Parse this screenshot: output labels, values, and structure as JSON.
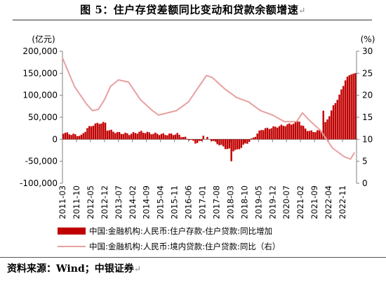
{
  "figure": {
    "title": "图 5：住户存贷差额同比变动和贷款余额增速",
    "source": "资料来源：Wind；中银证券"
  },
  "chart_data": {
    "type": "bar+line",
    "left_axis": {
      "unit": "(亿元)",
      "ylim": [
        -100000,
        200000
      ],
      "ticks": [
        200000,
        150000,
        100000,
        50000,
        0,
        -50000,
        -100000
      ],
      "tick_labels": [
        "200,000",
        "150,000",
        "100,000",
        "50,000",
        "0",
        "-50,000",
        "-100,000"
      ]
    },
    "right_axis": {
      "unit": "(%)",
      "ylim": [
        0,
        30
      ],
      "ticks": [
        30,
        25,
        20,
        15,
        10,
        5,
        0
      ],
      "tick_labels": [
        "30",
        "25",
        "20",
        "15",
        "10",
        "5",
        "0"
      ]
    },
    "x_ticks": [
      "2011-03",
      "2011-10",
      "2012-05",
      "2012-12",
      "2013-07",
      "2014-02",
      "2014-09",
      "2015-04",
      "2015-11",
      "2016-06",
      "2017-01",
      "2017-08",
      "2018-03",
      "2018-10",
      "2019-05",
      "2019-12",
      "2020-07",
      "2021-02",
      "2021-09",
      "2022-04",
      "2022-11"
    ],
    "series": [
      {
        "name": "中国:金融机构:人民币:住户存款-住户贷款:同比增加",
        "kind": "bar",
        "axis": "left",
        "color": "#c00000",
        "start": "2011-03",
        "points": [
          [
            "2011-03",
            15000
          ],
          [
            "2011-09",
            10000
          ],
          [
            "2011-12",
            8000
          ],
          [
            "2012-03",
            25000
          ],
          [
            "2012-06",
            33000
          ],
          [
            "2012-09",
            37000
          ],
          [
            "2012-12",
            37000
          ],
          [
            "2013-01",
            22000
          ],
          [
            "2013-06",
            15000
          ],
          [
            "2013-12",
            12000
          ],
          [
            "2014-06",
            17000
          ],
          [
            "2014-12",
            13000
          ],
          [
            "2015-06",
            11000
          ],
          [
            "2015-12",
            12000
          ],
          [
            "2016-03",
            5000
          ],
          [
            "2016-06",
            0
          ],
          [
            "2016-09",
            -8000
          ],
          [
            "2016-12",
            -5000
          ],
          [
            "2017-03",
            3000
          ],
          [
            "2017-06",
            -5000
          ],
          [
            "2017-09",
            -12000
          ],
          [
            "2017-12",
            -20000
          ],
          [
            "2018-03",
            -25000
          ],
          [
            "2018-06",
            -25000
          ],
          [
            "2018-09",
            -14000
          ],
          [
            "2018-12",
            -5000
          ],
          [
            "2019-03",
            8000
          ],
          [
            "2019-06",
            22000
          ],
          [
            "2019-12",
            27000
          ],
          [
            "2020-03",
            30000
          ],
          [
            "2020-06",
            32000
          ],
          [
            "2020-09",
            35000
          ],
          [
            "2020-12",
            40000
          ],
          [
            "2021-03",
            28000
          ],
          [
            "2021-06",
            18000
          ],
          [
            "2021-09",
            18000
          ],
          [
            "2021-12",
            20000
          ],
          [
            "2022-03",
            45000
          ],
          [
            "2022-06",
            75000
          ],
          [
            "2022-09",
            100000
          ],
          [
            "2022-12",
            135000
          ],
          [
            "2023-03",
            150000
          ],
          [
            "2023-05",
            148000
          ]
        ],
        "spikes": [
          [
            "2017-01",
            8000
          ],
          [
            "2018-03",
            -50000
          ],
          [
            "2021-01",
            40000
          ],
          [
            "2022-01",
            65000
          ]
        ]
      },
      {
        "name": "中国:金融机构:人民币:境内贷款:住户贷款:同比（右）",
        "kind": "line",
        "axis": "right",
        "color": "#e8a0a0",
        "points": [
          [
            "2011-03",
            28.5
          ],
          [
            "2011-09",
            22
          ],
          [
            "2012-03",
            18
          ],
          [
            "2012-06",
            16.5
          ],
          [
            "2012-09",
            16.8
          ],
          [
            "2012-12",
            19
          ],
          [
            "2013-03",
            22
          ],
          [
            "2013-07",
            23.5
          ],
          [
            "2013-12",
            23
          ],
          [
            "2014-06",
            19
          ],
          [
            "2014-12",
            16.5
          ],
          [
            "2015-03",
            15.5
          ],
          [
            "2015-12",
            16.5
          ],
          [
            "2016-06",
            18.5
          ],
          [
            "2016-12",
            22.5
          ],
          [
            "2017-03",
            24.5
          ],
          [
            "2017-06",
            24
          ],
          [
            "2017-12",
            21.5
          ],
          [
            "2018-06",
            19.5
          ],
          [
            "2018-12",
            18.5
          ],
          [
            "2019-06",
            16.5
          ],
          [
            "2019-12",
            15.5
          ],
          [
            "2020-06",
            14
          ],
          [
            "2020-12",
            14
          ],
          [
            "2021-03",
            16
          ],
          [
            "2021-06",
            14.5
          ],
          [
            "2021-12",
            12
          ],
          [
            "2022-03",
            10
          ],
          [
            "2022-06",
            8
          ],
          [
            "2022-09",
            7
          ],
          [
            "2022-12",
            6
          ],
          [
            "2023-03",
            5.5
          ],
          [
            "2023-05",
            7
          ]
        ]
      }
    ]
  }
}
